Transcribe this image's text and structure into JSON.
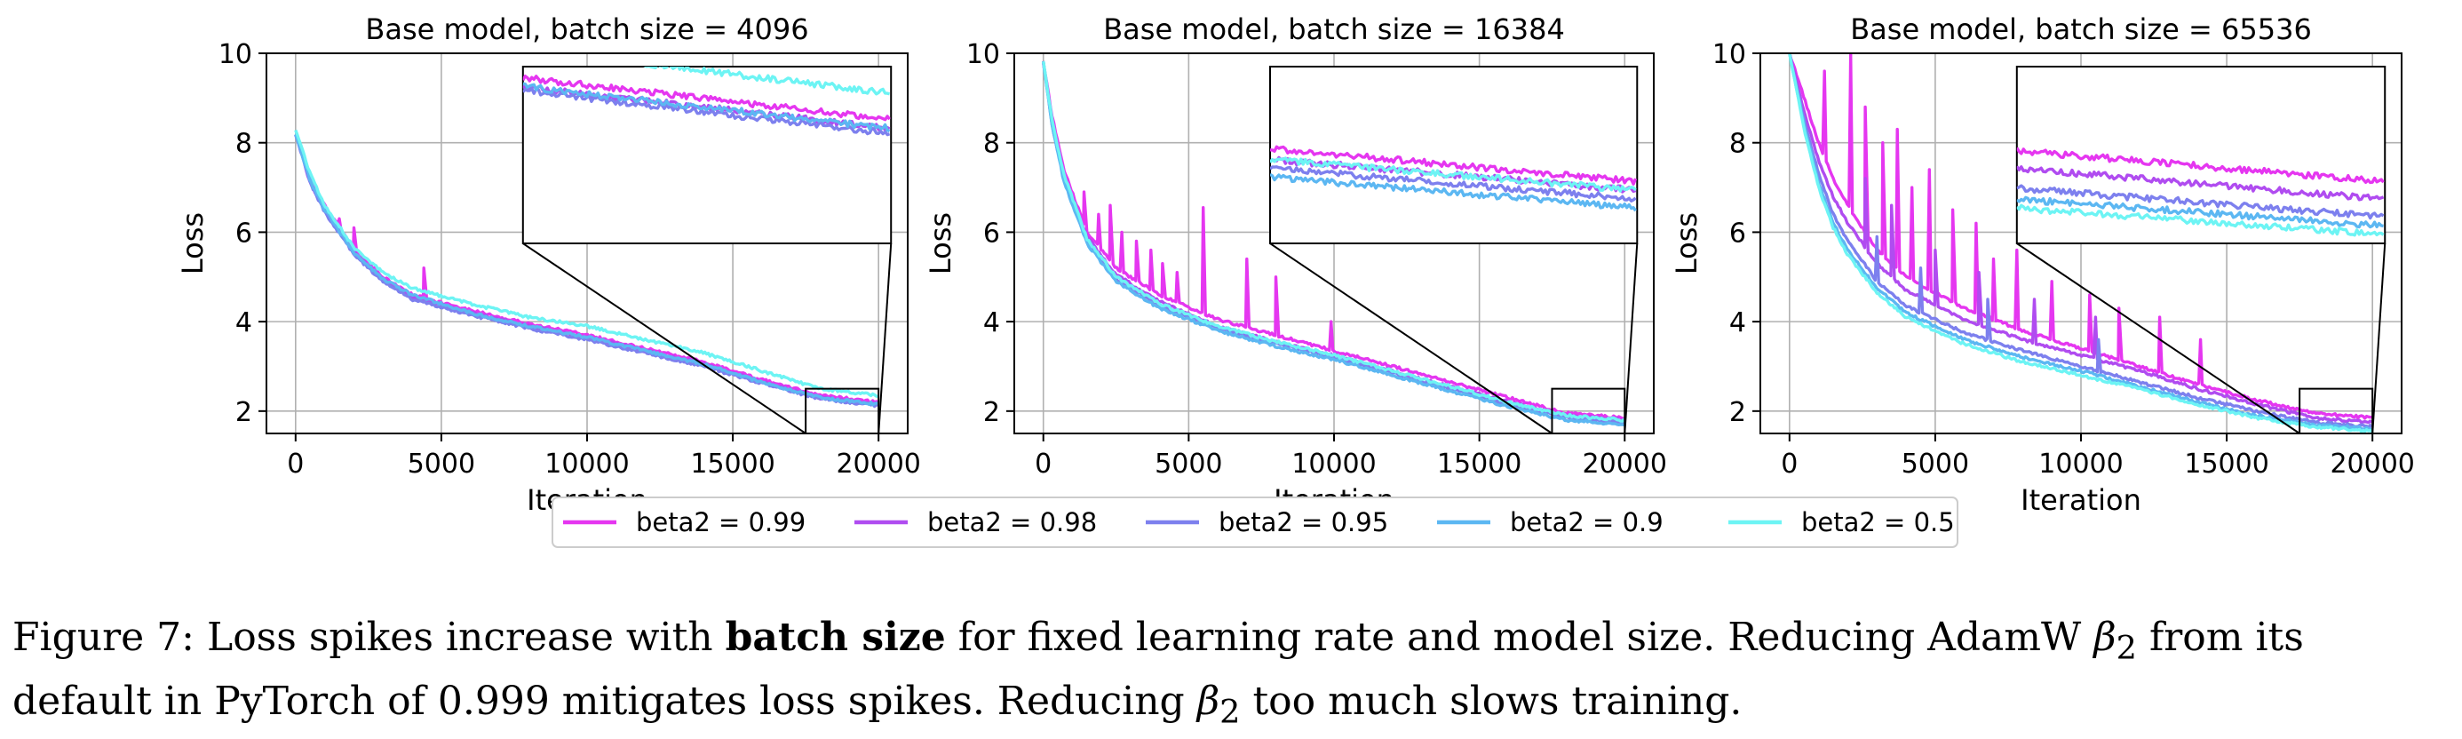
{
  "figure": {
    "caption": {
      "prefix": "Figure 7: Loss spikes increase with ",
      "bold": "batch size",
      "line1_rest": " for fixed learning rate and model size. Reducing AdamW ",
      "beta_sym": "β",
      "beta_sub": "2",
      "line1_end": " from its",
      "line2_start": "default in PyTorch of 0.999 mitigates loss spikes. Reducing ",
      "line2_end": " too much slows training."
    }
  },
  "legend": {
    "placement": "bottom-center",
    "entries": [
      {
        "name": "beta2 = 0.99",
        "color": "#e536f0"
      },
      {
        "name": "beta2 = 0.98",
        "color": "#b04cf0"
      },
      {
        "name": "beta2 = 0.95",
        "color": "#7d80ee"
      },
      {
        "name": "beta2 = 0.9",
        "color": "#5cb7f2"
      },
      {
        "name": "beta2 = 0.5",
        "color": "#6df4f4"
      }
    ]
  },
  "chart_data": [
    {
      "type": "line",
      "title": "Base model, batch size = 4096",
      "xlabel": "Iteration",
      "ylabel": "Loss",
      "xlim": [
        -1000,
        21000
      ],
      "ylim": [
        1.5,
        10
      ],
      "xticks": [
        0,
        5000,
        10000,
        15000,
        20000
      ],
      "xtick_labels": [
        "0",
        "5000",
        "10000",
        "15000",
        "20000"
      ],
      "yticks": [
        2,
        4,
        6,
        8,
        10
      ],
      "ytick_labels": [
        "2",
        "4",
        "6",
        "8",
        "10"
      ],
      "grid": true,
      "inset": {
        "xlim": [
          17500,
          20000
        ],
        "ylim": [
          1.5,
          2.5
        ]
      },
      "series": [
        {
          "name": "beta2 = 0.99",
          "color": "#e536f0",
          "x": [
            0,
            500,
            1000,
            2000,
            3000,
            4000,
            6000,
            8000,
            10000,
            12000,
            14000,
            16000,
            18000,
            20000
          ],
          "y": [
            8.2,
            7.2,
            6.6,
            5.6,
            5.0,
            4.6,
            4.25,
            3.95,
            3.7,
            3.4,
            3.1,
            2.7,
            2.35,
            2.2
          ],
          "spikes": [
            [
              1500,
              6.3
            ],
            [
              2000,
              6.1
            ],
            [
              4400,
              5.2
            ]
          ]
        },
        {
          "name": "beta2 = 0.98",
          "color": "#b04cf0",
          "x": [
            0,
            500,
            1000,
            2000,
            3000,
            4000,
            6000,
            8000,
            10000,
            12000,
            14000,
            16000,
            18000,
            20000
          ],
          "y": [
            8.2,
            7.1,
            6.5,
            5.55,
            4.95,
            4.55,
            4.2,
            3.9,
            3.65,
            3.35,
            3.05,
            2.65,
            2.3,
            2.15
          ],
          "spikes": []
        },
        {
          "name": "beta2 = 0.95",
          "color": "#7d80ee",
          "x": [
            0,
            500,
            1000,
            2000,
            3000,
            4000,
            6000,
            8000,
            10000,
            12000,
            14000,
            16000,
            18000,
            20000
          ],
          "y": [
            8.2,
            7.1,
            6.45,
            5.5,
            4.9,
            4.5,
            4.15,
            3.85,
            3.6,
            3.3,
            3.0,
            2.62,
            2.28,
            2.12
          ],
          "spikes": []
        },
        {
          "name": "beta2 = 0.9",
          "color": "#5cb7f2",
          "x": [
            0,
            500,
            1000,
            2000,
            3000,
            4000,
            6000,
            8000,
            10000,
            12000,
            14000,
            16000,
            18000,
            20000
          ],
          "y": [
            8.2,
            7.15,
            6.5,
            5.55,
            4.95,
            4.6,
            4.2,
            3.9,
            3.65,
            3.35,
            3.05,
            2.65,
            2.3,
            2.15
          ],
          "spikes": []
        },
        {
          "name": "beta2 = 0.5",
          "color": "#6df4f4",
          "x": [
            0,
            500,
            1000,
            2000,
            3000,
            4000,
            6000,
            8000,
            10000,
            12000,
            14000,
            16000,
            18000,
            20000
          ],
          "y": [
            8.3,
            7.3,
            6.6,
            5.65,
            5.1,
            4.75,
            4.4,
            4.1,
            3.9,
            3.6,
            3.3,
            2.9,
            2.5,
            2.35
          ],
          "spikes": []
        }
      ]
    },
    {
      "type": "line",
      "title": "Base model, batch size = 16384",
      "xlabel": "Iteration",
      "ylabel": "Loss",
      "xlim": [
        -1000,
        21000
      ],
      "ylim": [
        1.5,
        10
      ],
      "xticks": [
        0,
        5000,
        10000,
        15000,
        20000
      ],
      "xtick_labels": [
        "0",
        "5000",
        "10000",
        "15000",
        "20000"
      ],
      "yticks": [
        2,
        4,
        6,
        8,
        10
      ],
      "ytick_labels": [
        "2",
        "4",
        "6",
        "8",
        "10"
      ],
      "grid": true,
      "inset": {
        "xlim": [
          17500,
          20000
        ],
        "ylim": [
          1.5,
          2.5
        ]
      },
      "series": [
        {
          "name": "beta2 = 0.99",
          "color": "#e536f0",
          "x": [
            0,
            300,
            700,
            1500,
            2500,
            4000,
            6000,
            8000,
            10000,
            12000,
            14000,
            16000,
            18000,
            20000
          ],
          "y": [
            9.8,
            8.6,
            7.4,
            6.0,
            5.2,
            4.6,
            4.05,
            3.7,
            3.35,
            3.0,
            2.65,
            2.3,
            1.95,
            1.85
          ],
          "spikes": [
            [
              1400,
              6.9
            ],
            [
              1900,
              6.4
            ],
            [
              2300,
              6.6
            ],
            [
              2700,
              6.0
            ],
            [
              3200,
              5.8
            ],
            [
              3700,
              5.6
            ],
            [
              4100,
              5.3
            ],
            [
              4600,
              5.1
            ],
            [
              5500,
              6.55
            ],
            [
              7000,
              5.4
            ],
            [
              8000,
              5.0
            ],
            [
              9900,
              4.0
            ]
          ]
        },
        {
          "name": "beta2 = 0.98",
          "color": "#b04cf0",
          "x": [
            0,
            300,
            700,
            1500,
            2500,
            4000,
            6000,
            8000,
            10000,
            12000,
            14000,
            16000,
            18000,
            20000
          ],
          "y": [
            9.8,
            8.5,
            7.3,
            5.9,
            5.05,
            4.45,
            3.9,
            3.55,
            3.25,
            2.9,
            2.55,
            2.2,
            1.9,
            1.8
          ],
          "spikes": []
        },
        {
          "name": "beta2 = 0.95",
          "color": "#7d80ee",
          "x": [
            0,
            300,
            700,
            1500,
            2500,
            4000,
            6000,
            8000,
            10000,
            12000,
            14000,
            16000,
            18000,
            20000
          ],
          "y": [
            9.8,
            8.4,
            7.2,
            5.8,
            4.95,
            4.35,
            3.85,
            3.5,
            3.2,
            2.85,
            2.5,
            2.15,
            1.85,
            1.75
          ],
          "spikes": []
        },
        {
          "name": "beta2 = 0.9",
          "color": "#5cb7f2",
          "x": [
            0,
            300,
            700,
            1500,
            2500,
            4000,
            6000,
            8000,
            10000,
            12000,
            14000,
            16000,
            18000,
            20000
          ],
          "y": [
            9.8,
            8.4,
            7.15,
            5.75,
            4.9,
            4.3,
            3.8,
            3.45,
            3.15,
            2.8,
            2.45,
            2.1,
            1.8,
            1.7
          ],
          "spikes": []
        },
        {
          "name": "beta2 = 0.5",
          "color": "#6df4f4",
          "x": [
            0,
            300,
            700,
            1500,
            2500,
            4000,
            6000,
            8000,
            10000,
            12000,
            14000,
            16000,
            18000,
            20000
          ],
          "y": [
            9.8,
            8.5,
            7.3,
            5.85,
            5.0,
            4.4,
            3.9,
            3.55,
            3.25,
            2.9,
            2.55,
            2.2,
            1.9,
            1.8
          ],
          "spikes": []
        }
      ]
    },
    {
      "type": "line",
      "title": "Base model, batch size = 65536",
      "xlabel": "Iteration",
      "ylabel": "Loss",
      "xlim": [
        -1000,
        21000
      ],
      "ylim": [
        1.5,
        10
      ],
      "xticks": [
        0,
        5000,
        10000,
        15000,
        20000
      ],
      "xtick_labels": [
        "0",
        "5000",
        "10000",
        "15000",
        "20000"
      ],
      "yticks": [
        2,
        4,
        6,
        8,
        10
      ],
      "ytick_labels": [
        "2",
        "4",
        "6",
        "8",
        "10"
      ],
      "grid": true,
      "inset": {
        "xlim": [
          17500,
          20000
        ],
        "ylim": [
          1.5,
          2.5
        ]
      },
      "series": [
        {
          "name": "beta2 = 0.99",
          "color": "#e536f0",
          "x": [
            0,
            500,
            1000,
            1500,
            2000,
            3000,
            4000,
            6000,
            8000,
            10000,
            12000,
            14000,
            16000,
            18000,
            20000
          ],
          "y": [
            10,
            9.0,
            8.0,
            7.2,
            6.6,
            5.6,
            5.0,
            4.3,
            3.8,
            3.4,
            3.0,
            2.6,
            2.25,
            1.95,
            1.85
          ],
          "spikes": [
            [
              1200,
              9.6
            ],
            [
              2100,
              10
            ],
            [
              2600,
              8.8
            ],
            [
              3200,
              8.0
            ],
            [
              3700,
              8.3
            ],
            [
              4200,
              7.0
            ],
            [
              4800,
              7.4
            ],
            [
              5600,
              6.5
            ],
            [
              6400,
              6.2
            ],
            [
              7000,
              5.4
            ],
            [
              7800,
              5.6
            ],
            [
              9000,
              4.9
            ],
            [
              10300,
              4.6
            ],
            [
              11300,
              4.3
            ],
            [
              12700,
              4.1
            ],
            [
              14100,
              3.6
            ]
          ]
        },
        {
          "name": "beta2 = 0.98",
          "color": "#b04cf0",
          "x": [
            0,
            500,
            1000,
            1500,
            2000,
            3000,
            4000,
            6000,
            8000,
            10000,
            12000,
            14000,
            16000,
            18000,
            20000
          ],
          "y": [
            10,
            8.7,
            7.6,
            6.8,
            6.2,
            5.3,
            4.7,
            4.05,
            3.6,
            3.25,
            2.9,
            2.5,
            2.15,
            1.85,
            1.75
          ],
          "spikes": [
            [
              2600,
              7.2
            ],
            [
              3500,
              6.6
            ],
            [
              5000,
              5.6
            ],
            [
              6500,
              5.1
            ],
            [
              8400,
              4.5
            ],
            [
              10500,
              4.1
            ]
          ]
        },
        {
          "name": "beta2 = 0.95",
          "color": "#7d80ee",
          "x": [
            0,
            500,
            1000,
            1500,
            2000,
            3000,
            4000,
            6000,
            8000,
            10000,
            12000,
            14000,
            16000,
            18000,
            20000
          ],
          "y": [
            10,
            8.5,
            7.3,
            6.4,
            5.8,
            4.9,
            4.35,
            3.75,
            3.35,
            3.0,
            2.65,
            2.3,
            2.0,
            1.75,
            1.65
          ],
          "spikes": [
            [
              3000,
              5.9
            ],
            [
              4500,
              5.2
            ],
            [
              6800,
              4.5
            ],
            [
              10600,
              3.6
            ]
          ]
        },
        {
          "name": "beta2 = 0.9",
          "color": "#5cb7f2",
          "x": [
            0,
            500,
            1000,
            1500,
            2000,
            3000,
            4000,
            6000,
            8000,
            10000,
            12000,
            14000,
            16000,
            18000,
            20000
          ],
          "y": [
            10,
            8.4,
            7.1,
            6.2,
            5.6,
            4.75,
            4.2,
            3.6,
            3.2,
            2.9,
            2.55,
            2.2,
            1.9,
            1.7,
            1.6
          ],
          "spikes": []
        },
        {
          "name": "beta2 = 0.5",
          "color": "#6df4f4",
          "x": [
            0,
            500,
            1000,
            1500,
            2000,
            3000,
            4000,
            6000,
            8000,
            10000,
            12000,
            14000,
            16000,
            18000,
            20000
          ],
          "y": [
            10,
            8.3,
            7.0,
            6.1,
            5.5,
            4.65,
            4.1,
            3.5,
            3.1,
            2.8,
            2.5,
            2.15,
            1.85,
            1.65,
            1.55
          ],
          "spikes": []
        }
      ]
    }
  ]
}
